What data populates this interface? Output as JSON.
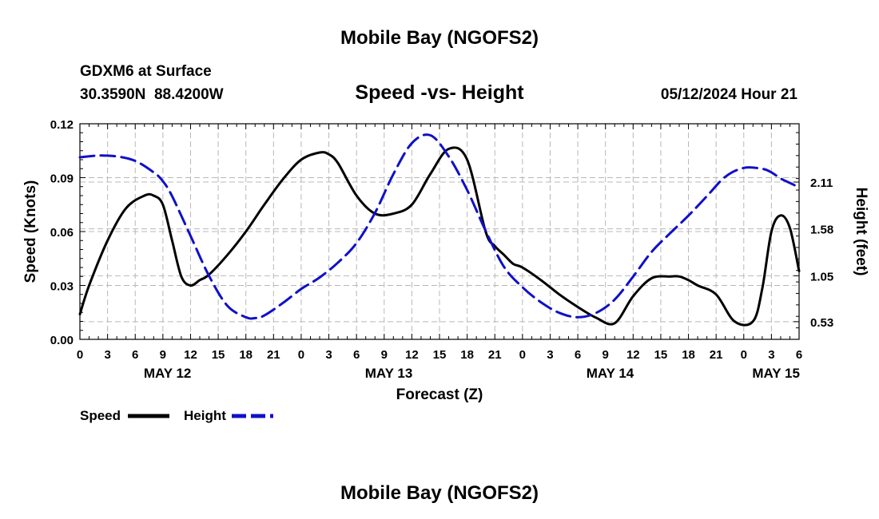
{
  "page": {
    "title_top": "Mobile Bay (NGOFS2)",
    "title_bottom": "Mobile Bay (NGOFS2)"
  },
  "chart_data": {
    "type": "line",
    "title": "Speed -vs- Height",
    "station": "GDXM6 at Surface",
    "location": "30.3590N  88.4200W",
    "timestamp": "05/12/2024 Hour 21",
    "xlabel": "Forecast (Z)",
    "ylabel_left": "Speed (Knots)",
    "ylabel_right": "Height (feet)",
    "x_range_hours": [
      0,
      78
    ],
    "x_tick_labels": [
      "0",
      "3",
      "6",
      "9",
      "12",
      "15",
      "18",
      "21",
      "0",
      "3",
      "6",
      "9",
      "12",
      "15",
      "18",
      "21",
      "0",
      "3",
      "6",
      "9",
      "12",
      "15",
      "18",
      "21",
      "0",
      "3",
      "6"
    ],
    "date_labels": [
      {
        "label": "MAY 12",
        "hour": 9.5
      },
      {
        "label": "MAY 13",
        "hour": 33.5
      },
      {
        "label": "MAY 14",
        "hour": 57.5
      },
      {
        "label": "MAY 15",
        "hour": 75.5
      }
    ],
    "y_left": {
      "ylim": [
        0,
        0.12
      ],
      "ticks": [
        0.0,
        0.03,
        0.06,
        0.09,
        0.12
      ],
      "tick_labels": [
        "0.00",
        "0.03",
        "0.06",
        "0.09",
        "0.12"
      ]
    },
    "y_right": {
      "ylim": [
        0.33,
        2.77
      ],
      "ticks": [
        0.53,
        1.05,
        1.58,
        2.11
      ],
      "tick_labels": [
        "0.53",
        "1.05",
        "1.58",
        "2.11"
      ]
    },
    "grid": true,
    "legend_position": "bottom-left",
    "series": [
      {
        "name": "Speed",
        "axis": "left",
        "color": "#000000",
        "style": "solid",
        "x": [
          0,
          1,
          3,
          5,
          7,
          8,
          9,
          10,
          11,
          12,
          13,
          14,
          16,
          18,
          20,
          22,
          24,
          26,
          27,
          28,
          30,
          32,
          34,
          36,
          38,
          40,
          42,
          44,
          45,
          46,
          47,
          48,
          50,
          52,
          54,
          56,
          58,
          60,
          62,
          64,
          65,
          66,
          67,
          69,
          71,
          73,
          74,
          75,
          76,
          77,
          78
        ],
        "y": [
          0.014,
          0.03,
          0.055,
          0.073,
          0.08,
          0.08,
          0.075,
          0.055,
          0.035,
          0.03,
          0.033,
          0.036,
          0.047,
          0.06,
          0.075,
          0.089,
          0.1,
          0.104,
          0.103,
          0.098,
          0.08,
          0.07,
          0.07,
          0.075,
          0.092,
          0.106,
          0.1,
          0.06,
          0.052,
          0.047,
          0.042,
          0.04,
          0.033,
          0.025,
          0.018,
          0.012,
          0.009,
          0.024,
          0.034,
          0.035,
          0.035,
          0.033,
          0.03,
          0.025,
          0.01,
          0.01,
          0.028,
          0.06,
          0.069,
          0.062,
          0.038
        ]
      },
      {
        "name": "Height",
        "axis": "right",
        "color": "#1010c8",
        "style": "dashed",
        "x": [
          0,
          2,
          4,
          6,
          8,
          9,
          10,
          12,
          14,
          16,
          18,
          19,
          20,
          22,
          24,
          26,
          28,
          30,
          32,
          34,
          36,
          38,
          40,
          42,
          44,
          46,
          48,
          50,
          52,
          54,
          56,
          58,
          60,
          62,
          64,
          66,
          68,
          70,
          72,
          74,
          75,
          76,
          77,
          78
        ],
        "y": [
          2.39,
          2.41,
          2.4,
          2.35,
          2.22,
          2.12,
          1.95,
          1.5,
          1.05,
          0.71,
          0.58,
          0.57,
          0.6,
          0.74,
          0.9,
          1.03,
          1.2,
          1.42,
          1.76,
          2.2,
          2.55,
          2.64,
          2.4,
          2.02,
          1.56,
          1.15,
          0.92,
          0.75,
          0.63,
          0.58,
          0.63,
          0.78,
          1.04,
          1.32,
          1.53,
          1.73,
          1.95,
          2.17,
          2.27,
          2.26,
          2.22,
          2.15,
          2.1,
          2.05
        ]
      }
    ]
  }
}
